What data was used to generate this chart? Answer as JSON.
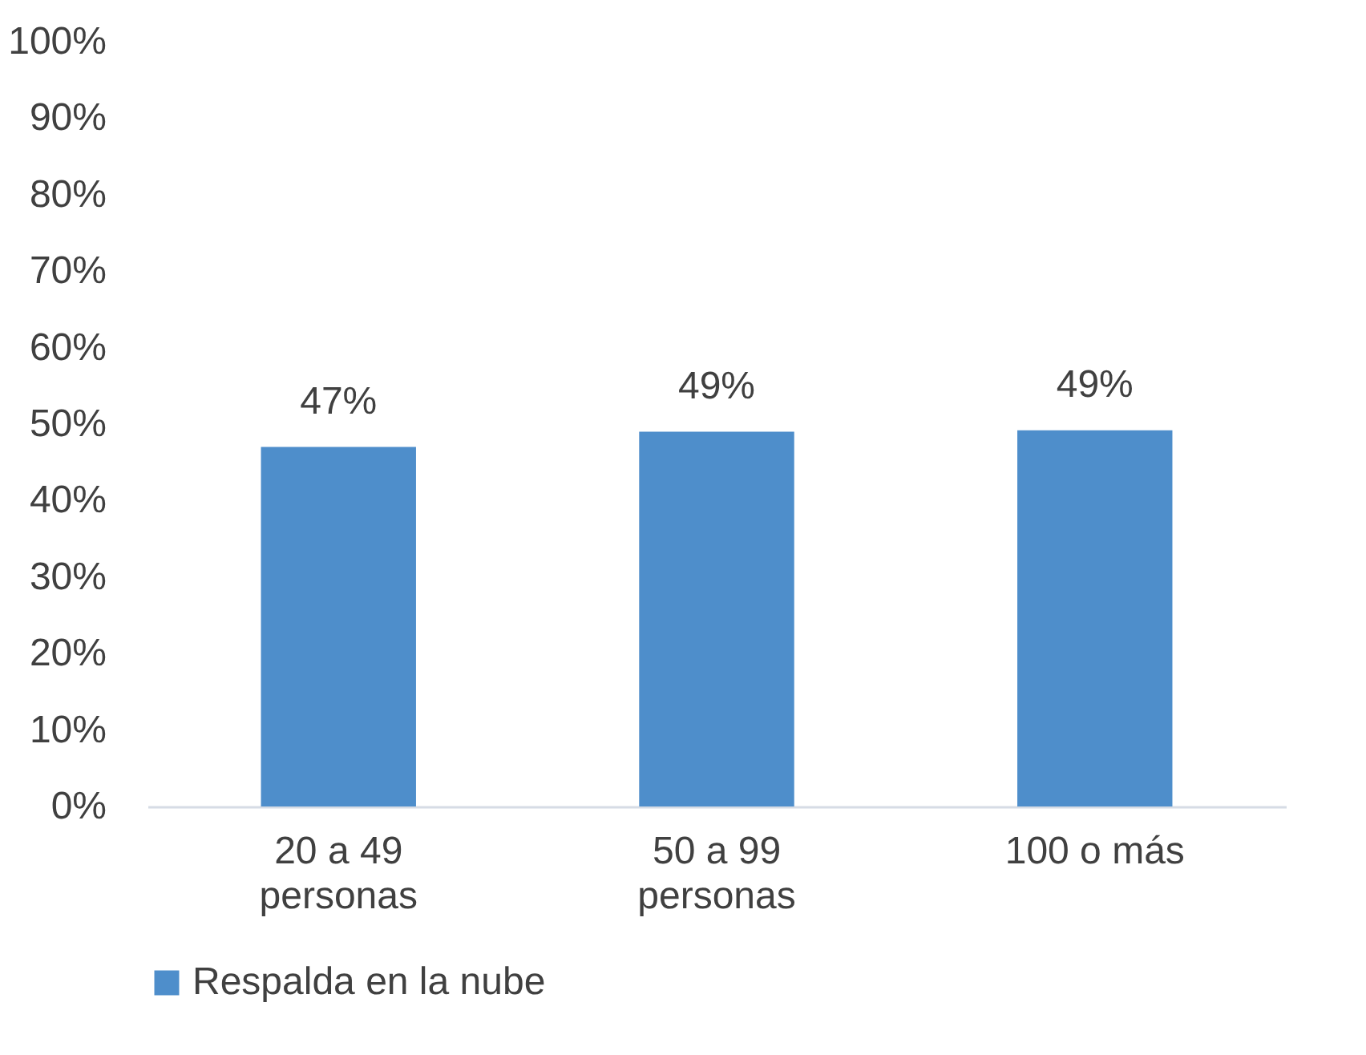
{
  "chart_data": {
    "type": "bar",
    "categories": [
      "20 a 49 personas",
      "50 a 99 personas",
      "100 o más"
    ],
    "series": [
      {
        "name": "Respalda en la nube",
        "color": "#4e8ecb",
        "values": [
          47,
          49,
          49.2
        ]
      }
    ],
    "value_labels": [
      "47%",
      "49%",
      "49%"
    ],
    "ylim": [
      0,
      100
    ],
    "yticks": [
      {
        "value": 0,
        "label": "0%"
      },
      {
        "value": 10,
        "label": "10%"
      },
      {
        "value": 20,
        "label": "20%"
      },
      {
        "value": 30,
        "label": "30%"
      },
      {
        "value": 40,
        "label": "40%"
      },
      {
        "value": 50,
        "label": "50%"
      },
      {
        "value": 60,
        "label": "60%"
      },
      {
        "value": 70,
        "label": "70%"
      },
      {
        "value": 80,
        "label": "80%"
      },
      {
        "value": 90,
        "label": "90%"
      },
      {
        "value": 100,
        "label": "100%"
      }
    ],
    "grid": false,
    "legend": "bottom"
  }
}
